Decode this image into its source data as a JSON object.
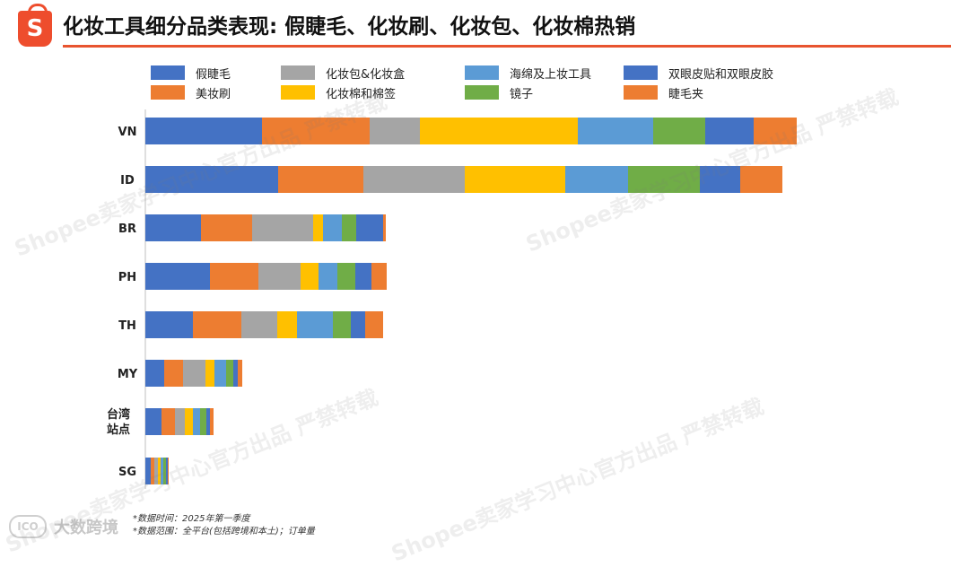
{
  "header": {
    "logo_letter": "S",
    "title": "化妆工具细分品类表现: 假睫毛、化妆刷、化妆包、化妆棉热销"
  },
  "watermark_text": "Shopee卖家学习中心官方出品 严禁转载",
  "chart_data": {
    "type": "bar",
    "orientation": "horizontal",
    "stacked": true,
    "title": "",
    "xlabel": "",
    "ylabel": "",
    "legend_position": "top",
    "categories": [
      "VN",
      "ID",
      "BR",
      "PH",
      "TH",
      "MY",
      "台湾站点",
      "SG"
    ],
    "series": [
      {
        "name": "假睫毛",
        "color": "#4472c4",
        "values": [
          130,
          148,
          62,
          72,
          53,
          21,
          18,
          6
        ]
      },
      {
        "name": "美妆刷",
        "color": "#ed7d31",
        "values": [
          120,
          95,
          57,
          54,
          54,
          21,
          15,
          4
        ]
      },
      {
        "name": "化妆包&化妆盒",
        "color": "#a5a5a5",
        "values": [
          56,
          113,
          68,
          47,
          40,
          25,
          11,
          4
        ]
      },
      {
        "name": "化妆棉和棉签",
        "color": "#ffc000",
        "values": [
          176,
          112,
          11,
          20,
          22,
          10,
          9,
          3
        ]
      },
      {
        "name": "海绵及上妆工具",
        "color": "#5b9bd5",
        "values": [
          84,
          70,
          21,
          21,
          40,
          13,
          8,
          3
        ]
      },
      {
        "name": "镜子",
        "color": "#70ad47",
        "values": [
          58,
          80,
          16,
          20,
          20,
          8,
          7,
          3
        ]
      },
      {
        "name": "双眼皮贴和双眼皮胶",
        "color": "#4472c4",
        "values": [
          54,
          45,
          30,
          18,
          16,
          5,
          4,
          2
        ]
      },
      {
        "name": "睫毛夹",
        "color": "#ed7d31",
        "values": [
          48,
          47,
          3,
          17,
          20,
          5,
          4,
          1
        ]
      }
    ]
  },
  "notes": [
    "*数据时间：2025年第一季度",
    "*数据范围：全平台(包括跨境和本土)；订单量"
  ],
  "footer": {
    "brand_icon": "ICO",
    "brand_text": "大数跨境"
  }
}
